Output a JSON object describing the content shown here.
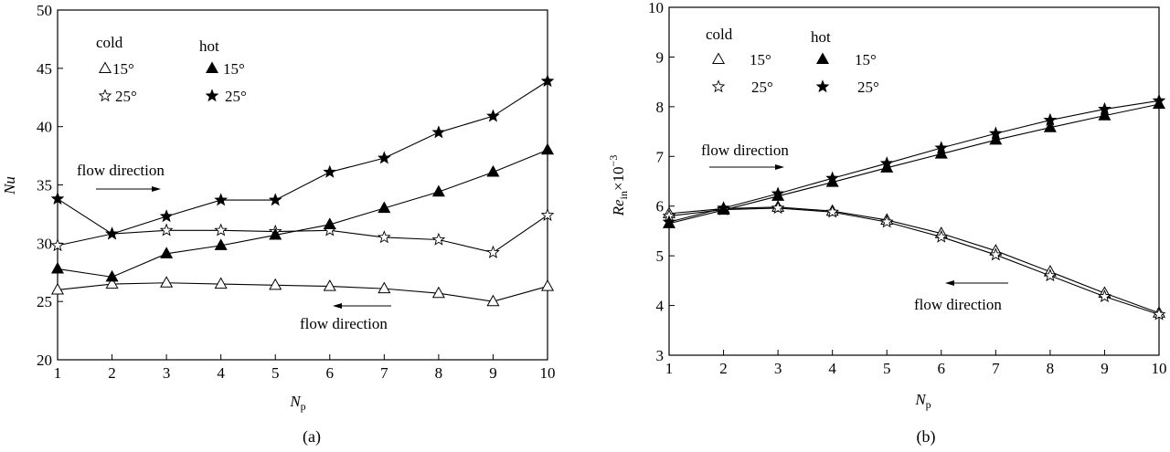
{
  "chart_data": [
    {
      "id": "a",
      "type": "line",
      "title": "(a)",
      "xlabel_main": "N",
      "xlabel_sub": "p",
      "ylabel": "Nu",
      "xlim": [
        1,
        10
      ],
      "ylim": [
        20,
        50
      ],
      "xticks": [
        "1",
        "2",
        "3",
        "4",
        "5",
        "6",
        "7",
        "8",
        "9",
        "10"
      ],
      "yticks": [
        "20",
        "25",
        "30",
        "35",
        "40",
        "45",
        "50"
      ],
      "x": [
        1,
        2,
        3,
        4,
        5,
        6,
        7,
        8,
        9,
        10
      ],
      "series": [
        {
          "name": "cold 15°",
          "marker": "triangle-open",
          "values": [
            26.0,
            26.5,
            26.6,
            26.5,
            26.4,
            26.3,
            26.1,
            25.7,
            25.0,
            26.3
          ]
        },
        {
          "name": "cold 25°",
          "marker": "star-open",
          "values": [
            29.8,
            30.8,
            31.1,
            31.1,
            31.0,
            31.1,
            30.5,
            30.3,
            29.2,
            32.4
          ]
        },
        {
          "name": "hot 15°",
          "marker": "triangle-filled",
          "values": [
            27.8,
            27.1,
            29.1,
            29.8,
            30.7,
            31.6,
            33.0,
            34.4,
            36.1,
            38.0
          ]
        },
        {
          "name": "hot 25°",
          "marker": "star-filled",
          "values": [
            33.8,
            30.8,
            32.3,
            33.7,
            33.7,
            36.1,
            37.3,
            39.5,
            40.9,
            43.9
          ]
        }
      ],
      "legend": {
        "cold_header": "cold",
        "hot_header": "hot",
        "cold_15": "15°",
        "cold_25": "25°",
        "hot_15": "15°",
        "hot_25": "25°"
      },
      "annotations": [
        "flow direction",
        "flow direction"
      ]
    },
    {
      "id": "b",
      "type": "line",
      "title": "(b)",
      "xlabel_main": "N",
      "xlabel_sub": "p",
      "ylabel_main": "Re",
      "ylabel_sub": "in",
      "ylabel_tail": "×10",
      "ylabel_exp": "−3",
      "xlim": [
        1,
        10
      ],
      "ylim": [
        3,
        10
      ],
      "xticks": [
        "1",
        "2",
        "3",
        "4",
        "5",
        "6",
        "7",
        "8",
        "9",
        "10"
      ],
      "yticks": [
        "3",
        "4",
        "5",
        "6",
        "7",
        "8",
        "9",
        "10"
      ],
      "x": [
        1,
        2,
        3,
        4,
        5,
        6,
        7,
        8,
        9,
        10
      ],
      "series": [
        {
          "name": "cold 15°",
          "marker": "triangle-open",
          "values": [
            5.85,
            5.95,
            5.98,
            5.9,
            5.72,
            5.45,
            5.1,
            4.68,
            4.25,
            3.85
          ]
        },
        {
          "name": "cold 25°",
          "marker": "star-open",
          "values": [
            5.8,
            5.93,
            5.96,
            5.88,
            5.68,
            5.38,
            5.02,
            4.6,
            4.18,
            3.82
          ]
        },
        {
          "name": "hot 15°",
          "marker": "triangle-filled",
          "values": [
            5.65,
            5.92,
            6.2,
            6.48,
            6.77,
            7.05,
            7.33,
            7.58,
            7.82,
            8.05
          ]
        },
        {
          "name": "hot 25°",
          "marker": "star-filled",
          "values": [
            5.68,
            5.96,
            6.25,
            6.56,
            6.86,
            7.17,
            7.46,
            7.73,
            7.95,
            8.12
          ]
        }
      ],
      "legend": {
        "cold_header": "cold",
        "hot_header": "hot",
        "cold_15": "15°",
        "cold_25": "25°",
        "hot_15": "15°",
        "hot_25": "25°"
      },
      "annotations": [
        "flow direction",
        "flow direction"
      ]
    }
  ]
}
